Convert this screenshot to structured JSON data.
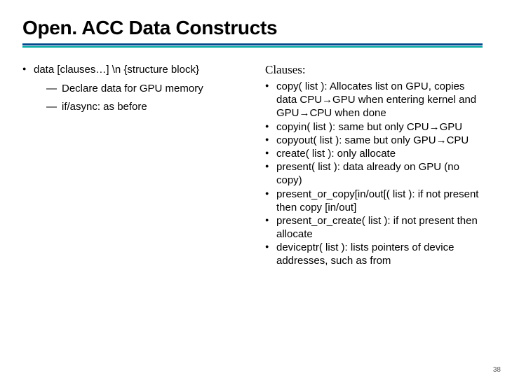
{
  "title": "Open. ACC Data Constructs",
  "rule": {
    "color1": "#004a8c",
    "height1": 3,
    "color2": "#00a9a0",
    "height2": 2
  },
  "left": {
    "item": "data [clauses…] \\n {structure block}",
    "sub": [
      "Declare data for GPU memory",
      "if/async: as before"
    ]
  },
  "right": {
    "heading": "Clauses:",
    "items": [
      "copy( list ): Allocates list on GPU, copies data CPU→GPU when entering kernel and GPU→CPU when done",
      "copyin( list ): same but only CPU→GPU",
      "copyout( list ): same but only GPU→CPU",
      "create( list ): only allocate",
      "present( list ): data already on GPU (no copy)",
      "present_or_copy[in/out[( list ): if not present then copy [in/out]",
      "present_or_create( list ): if not present then allocate",
      "deviceptr( list ): lists pointers of device addresses, such as from"
    ]
  },
  "page_number": "38",
  "arrow_glyph": "→",
  "colors": {
    "text": "#000000",
    "background": "#ffffff"
  },
  "fonts": {
    "title_size": 28,
    "body_size": 15,
    "heading_family": "Comic Sans MS"
  }
}
